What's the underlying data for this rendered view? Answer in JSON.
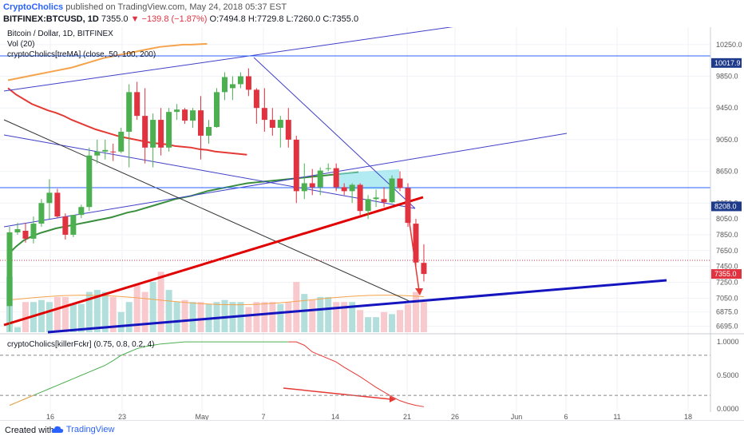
{
  "header": {
    "brand": "CryptoCholics",
    "published": "published on TradingView.com, May 24, 2018 05:37 EST",
    "symbol": "BITFINEX:BTCUSD, 1D",
    "last": "7355.0",
    "change": "−139.8 (−1.87%)",
    "ohlc": "O:7494.8 H:7729.8 L:7260.0 C:7355.0"
  },
  "legend": {
    "title": "Bitcoin / Dollar, 1D, BITFINEX",
    "vol": "Vol (20)",
    "indicator": "cryptoCholics[treMA] (close, 50, 100, 200)",
    "osc": "cryptoCholics[killerFckr] (0.75, 0.8, 0.2, 4)"
  },
  "footer": {
    "created": "Created with",
    "brand": "TradingView"
  },
  "colors": {
    "up": "#26a69a",
    "down": "#ef5350",
    "up_body": "#4caf50",
    "down_body": "#e0323f",
    "ma_red": "#e53935",
    "ma_green": "#388e3c",
    "ma_orange": "#f5a34c",
    "trend_blue": "#3f3fc8",
    "trend_red": "#e00000",
    "trend_thick_blue": "#1515c0"
  },
  "chart_data": [
    {
      "type": "candlestick",
      "title": "Bitcoin / Dollar, 1D, BITFINEX",
      "y_ticks": [
        10250,
        9850,
        9450,
        9050,
        8650,
        8250,
        8050,
        7850,
        7650,
        7450,
        7250,
        7050,
        6875,
        6695
      ],
      "x_tick_labels": [
        "16",
        "23",
        "May",
        "7",
        "14",
        "21",
        "26",
        "Jun",
        "6",
        "11",
        "18"
      ],
      "ylim": [
        6620,
        10470
      ],
      "price_labels": [
        {
          "value": 10017.9,
          "label": "10017.9"
        },
        {
          "value": 8208.0,
          "label": "8208.0"
        },
        {
          "value": 7355.0,
          "label": "7355.0"
        }
      ],
      "candles": [
        {
          "o": 6950,
          "h": 7950,
          "l": 6630,
          "c": 7880
        },
        {
          "o": 7880,
          "h": 8000,
          "l": 7850,
          "c": 7920
        },
        {
          "o": 7900,
          "h": 8000,
          "l": 7750,
          "c": 7800
        },
        {
          "o": 7800,
          "h": 8080,
          "l": 7740,
          "c": 7990
        },
        {
          "o": 7990,
          "h": 8300,
          "l": 7950,
          "c": 8250
        },
        {
          "o": 8250,
          "h": 8550,
          "l": 8050,
          "c": 8380
        },
        {
          "o": 8380,
          "h": 8430,
          "l": 8060,
          "c": 8080
        },
        {
          "o": 8080,
          "h": 8120,
          "l": 7790,
          "c": 7850
        },
        {
          "o": 7850,
          "h": 8100,
          "l": 7820,
          "c": 8100
        },
        {
          "o": 8100,
          "h": 8230,
          "l": 8060,
          "c": 8200
        },
        {
          "o": 8200,
          "h": 8950,
          "l": 8150,
          "c": 8850
        },
        {
          "o": 8850,
          "h": 9050,
          "l": 8750,
          "c": 8900
        },
        {
          "o": 8900,
          "h": 9050,
          "l": 8800,
          "c": 8920
        },
        {
          "o": 8900,
          "h": 9000,
          "l": 8780,
          "c": 8890
        },
        {
          "o": 8900,
          "h": 9200,
          "l": 8880,
          "c": 9150
        },
        {
          "o": 9150,
          "h": 9750,
          "l": 8700,
          "c": 9650
        },
        {
          "o": 9650,
          "h": 9780,
          "l": 9300,
          "c": 9350
        },
        {
          "o": 9350,
          "h": 9700,
          "l": 8750,
          "c": 8950
        },
        {
          "o": 8950,
          "h": 9380,
          "l": 8700,
          "c": 9300
        },
        {
          "o": 9300,
          "h": 9450,
          "l": 8850,
          "c": 8950
        },
        {
          "o": 8950,
          "h": 9450,
          "l": 8900,
          "c": 9400
        },
        {
          "o": 9400,
          "h": 9500,
          "l": 9300,
          "c": 9430
        },
        {
          "o": 9430,
          "h": 9450,
          "l": 9250,
          "c": 9290
        },
        {
          "o": 9290,
          "h": 9450,
          "l": 9200,
          "c": 9420
        },
        {
          "o": 9420,
          "h": 9600,
          "l": 8800,
          "c": 9100
        },
        {
          "o": 9100,
          "h": 9300,
          "l": 9000,
          "c": 9210
        },
        {
          "o": 9210,
          "h": 9700,
          "l": 9200,
          "c": 9650
        },
        {
          "o": 9650,
          "h": 9900,
          "l": 9550,
          "c": 9840
        },
        {
          "o": 9700,
          "h": 9850,
          "l": 9550,
          "c": 9750
        },
        {
          "o": 9750,
          "h": 9900,
          "l": 9700,
          "c": 9850
        },
        {
          "o": 9850,
          "h": 9950,
          "l": 9600,
          "c": 9680
        },
        {
          "o": 9680,
          "h": 9700,
          "l": 9250,
          "c": 9450
        },
        {
          "o": 9450,
          "h": 9700,
          "l": 9150,
          "c": 9300
        },
        {
          "o": 9300,
          "h": 9450,
          "l": 9100,
          "c": 9200
        },
        {
          "o": 9200,
          "h": 9350,
          "l": 8950,
          "c": 9300
        },
        {
          "o": 9300,
          "h": 9450,
          "l": 8950,
          "c": 9050
        },
        {
          "o": 9050,
          "h": 9100,
          "l": 8250,
          "c": 8400
        },
        {
          "o": 8400,
          "h": 8750,
          "l": 8300,
          "c": 8500
        },
        {
          "o": 8500,
          "h": 8680,
          "l": 8350,
          "c": 8450
        },
        {
          "o": 8450,
          "h": 8700,
          "l": 8350,
          "c": 8660
        },
        {
          "o": 8680,
          "h": 8750,
          "l": 8650,
          "c": 8690
        },
        {
          "o": 8690,
          "h": 8750,
          "l": 8400,
          "c": 8450
        },
        {
          "o": 8450,
          "h": 8500,
          "l": 8350,
          "c": 8400
        },
        {
          "o": 8400,
          "h": 8500,
          "l": 8250,
          "c": 8480
        },
        {
          "o": 8480,
          "h": 8500,
          "l": 8100,
          "c": 8150
        },
        {
          "o": 8150,
          "h": 8350,
          "l": 8050,
          "c": 8300
        },
        {
          "o": 8300,
          "h": 8420,
          "l": 8200,
          "c": 8320
        },
        {
          "o": 8300,
          "h": 8450,
          "l": 8200,
          "c": 8260
        },
        {
          "o": 8260,
          "h": 8600,
          "l": 8250,
          "c": 8560
        },
        {
          "o": 8560,
          "h": 8650,
          "l": 8400,
          "c": 8440
        },
        {
          "o": 8440,
          "h": 8500,
          "l": 7950,
          "c": 8000
        },
        {
          "o": 7990,
          "h": 8050,
          "l": 7450,
          "c": 7500
        },
        {
          "o": 7494.8,
          "h": 7729.8,
          "l": 7260,
          "c": 7355
        }
      ],
      "volume": [
        0.55,
        0.05,
        0.3,
        0.3,
        0.32,
        0.3,
        0.35,
        0.35,
        0.28,
        0.28,
        0.4,
        0.42,
        0.4,
        0.35,
        0.2,
        0.3,
        0.48,
        0.4,
        0.5,
        0.6,
        0.42,
        0.3,
        0.32,
        0.3,
        0.3,
        0.28,
        0.3,
        0.32,
        0.3,
        0.3,
        0.25,
        0.3,
        0.3,
        0.3,
        0.28,
        0.3,
        0.5,
        0.38,
        0.32,
        0.35,
        0.35,
        0.3,
        0.3,
        0.3,
        0.22,
        0.15,
        0.15,
        0.2,
        0.18,
        0.22,
        0.28,
        0.4,
        0.3
      ],
      "ma_50": [
        7600,
        7700,
        7780,
        7830,
        7870,
        7900,
        7930,
        7950,
        7970,
        7990,
        8010,
        8030,
        8050,
        8070,
        8100,
        8130,
        8150,
        8180,
        8210,
        8240,
        8270,
        8300,
        8320,
        8340,
        8370,
        8400,
        8420,
        8440,
        8460,
        8480,
        8500,
        8510,
        8520,
        8530,
        8540,
        8550,
        8560,
        8570,
        8580,
        8590,
        8600,
        8610,
        8620,
        8630,
        8640
      ],
      "ma_100": [
        9700,
        9620,
        9560,
        9500,
        9460,
        9420,
        9390,
        9350,
        9300,
        9260,
        9220,
        9180,
        9150,
        9120,
        9090,
        9070,
        9050,
        9030,
        9010,
        9000,
        8990,
        8970,
        8960,
        8950,
        8930,
        8920,
        8900,
        8890,
        8880,
        8870,
        8860
      ],
      "ma_200": [
        9800,
        9820,
        9840,
        9860,
        9880,
        9900,
        9920,
        9940,
        9960,
        9990,
        10020,
        10050,
        10080,
        10100,
        10120,
        10140,
        10160,
        10180,
        10200,
        10220,
        10230,
        10240,
        10250,
        10250,
        10255,
        10260
      ]
    },
    {
      "type": "line",
      "title": "cryptoCholics[killerFckr] (0.75, 0.8, 0.2, 4)",
      "y_ticks": [
        1.0,
        0.5,
        0.0
      ],
      "y_tick_labels": [
        "1.0000",
        "0.5000",
        "0.0000"
      ],
      "hlines": [
        0.8,
        0.2
      ],
      "ylim": [
        -0.05,
        1.05
      ],
      "series": [
        {
          "values": [
            0.05,
            0.1,
            0.15,
            0.2,
            0.25,
            0.3,
            0.35,
            0.4,
            0.45,
            0.5,
            0.55,
            0.6,
            0.65,
            0.72,
            0.8,
            0.85,
            0.9,
            0.93,
            0.95,
            0.97,
            0.98,
            0.99,
            1.0,
            1.0,
            1.0,
            1.0,
            1.0,
            1.0,
            1.0,
            1.0,
            1.0,
            1.0,
            1.0,
            1.0,
            1.0,
            1.0,
            1.0,
            0.95,
            0.85,
            0.8,
            0.75,
            0.7,
            0.62,
            0.55,
            0.48,
            0.4,
            0.32,
            0.25,
            0.18,
            0.12,
            0.08,
            0.05,
            0.03
          ]
        }
      ]
    }
  ]
}
